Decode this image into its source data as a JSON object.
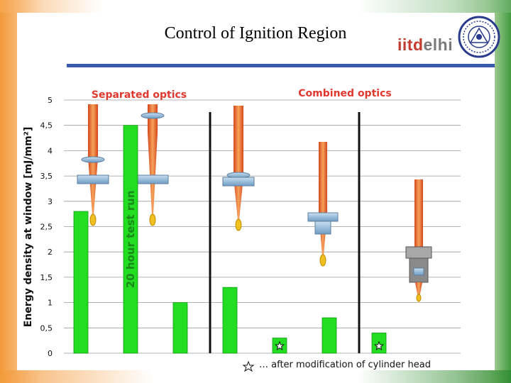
{
  "slide": {
    "title": "Control of Ignition Region",
    "logo_part1": "iitd",
    "logo_part2": "elhi"
  },
  "colors": {
    "bar": "#22dd22",
    "bar_edge": "#149914",
    "group_title": "#e0382e",
    "rule": "#3b5bb0",
    "grid": "#9a9a9a"
  },
  "chart_data": {
    "type": "bar",
    "ylabel": "Energy density at window [mJ/mm²]",
    "ylim": [
      0,
      5
    ],
    "ytick_labels": [
      "0",
      "0,5",
      "1",
      "1,5",
      "2",
      "2,5",
      "3",
      "3,5",
      "4",
      "4,5",
      "5"
    ],
    "group_titles": [
      "Separated optics",
      "Combined optics"
    ],
    "values": [
      2.8,
      4.5,
      1.0,
      1.3,
      0.3,
      0.7,
      0.4
    ],
    "bar_annotations": [
      "",
      "20 hour test run",
      "",
      "",
      "",
      "",
      ""
    ],
    "starred_bars": [
      4,
      6
    ],
    "footnote": "… after modification of cylinder head",
    "grid": true
  }
}
